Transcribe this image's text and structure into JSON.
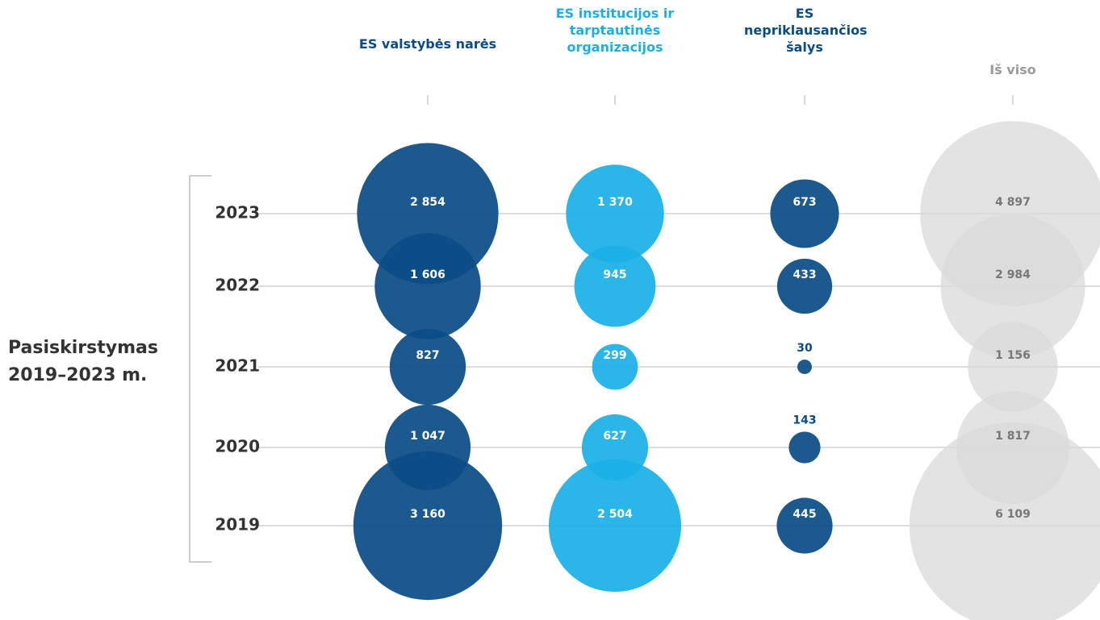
{
  "chart_data": {
    "type": "bubble",
    "y_label": "Pasiskirstymas 2019–2023 m.",
    "categories": [
      "2023",
      "2022",
      "2021",
      "2020",
      "2019"
    ],
    "series": [
      {
        "name": "ES valstybės narės",
        "color": "#0b4c86",
        "values": [
          2854,
          1606,
          827,
          1047,
          3160
        ],
        "value_labels": [
          "2 854",
          "1 606",
          "827",
          "1 047",
          "3 160"
        ]
      },
      {
        "name": "ES institucijos ir tarptautinės organizacijos",
        "color": "#1ab0e6",
        "values": [
          1370,
          945,
          299,
          627,
          2504
        ],
        "value_labels": [
          "1 370",
          "945",
          "299",
          "627",
          "2 504"
        ]
      },
      {
        "name": "ES nepriklausančios šalys",
        "color": "#0b4c86",
        "values": [
          673,
          433,
          30,
          143,
          445
        ],
        "value_labels": [
          "673",
          "433",
          "30",
          "143",
          "445"
        ]
      },
      {
        "name": "Iš viso",
        "color": "#d9d9d9",
        "values": [
          4897,
          2984,
          1156,
          1817,
          6109
        ],
        "value_labels": [
          "4 897",
          "2 984",
          "1 156",
          "1 817",
          "6 109"
        ]
      }
    ]
  }
}
